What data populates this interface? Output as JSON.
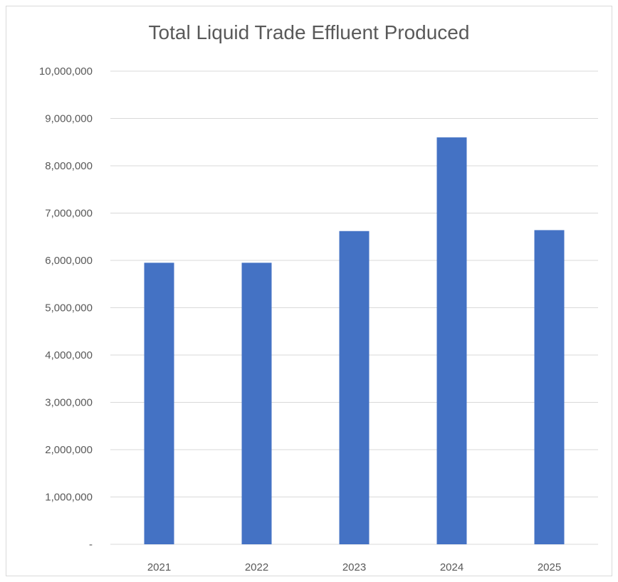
{
  "chart_data": {
    "type": "bar",
    "title": "Total Liquid Trade Effluent Produced",
    "xlabel": "",
    "ylabel": "",
    "categories": [
      "2021",
      "2022",
      "2023",
      "2024",
      "2025"
    ],
    "values": [
      5950000,
      5950000,
      6620000,
      8600000,
      6640000
    ],
    "ylim": [
      0,
      10000000
    ],
    "yticks": [
      0,
      1000000,
      2000000,
      3000000,
      4000000,
      5000000,
      6000000,
      7000000,
      8000000,
      9000000,
      10000000
    ],
    "ytick_labels": [
      "-",
      "1,000,000",
      "2,000,000",
      "3,000,000",
      "4,000,000",
      "5,000,000",
      "6,000,000",
      "7,000,000",
      "8,000,000",
      "9,000,000",
      "10,000,000"
    ],
    "grid": true,
    "legend": "none",
    "bar_color": "#4472C4",
    "grid_color": "#d9d9d9"
  }
}
